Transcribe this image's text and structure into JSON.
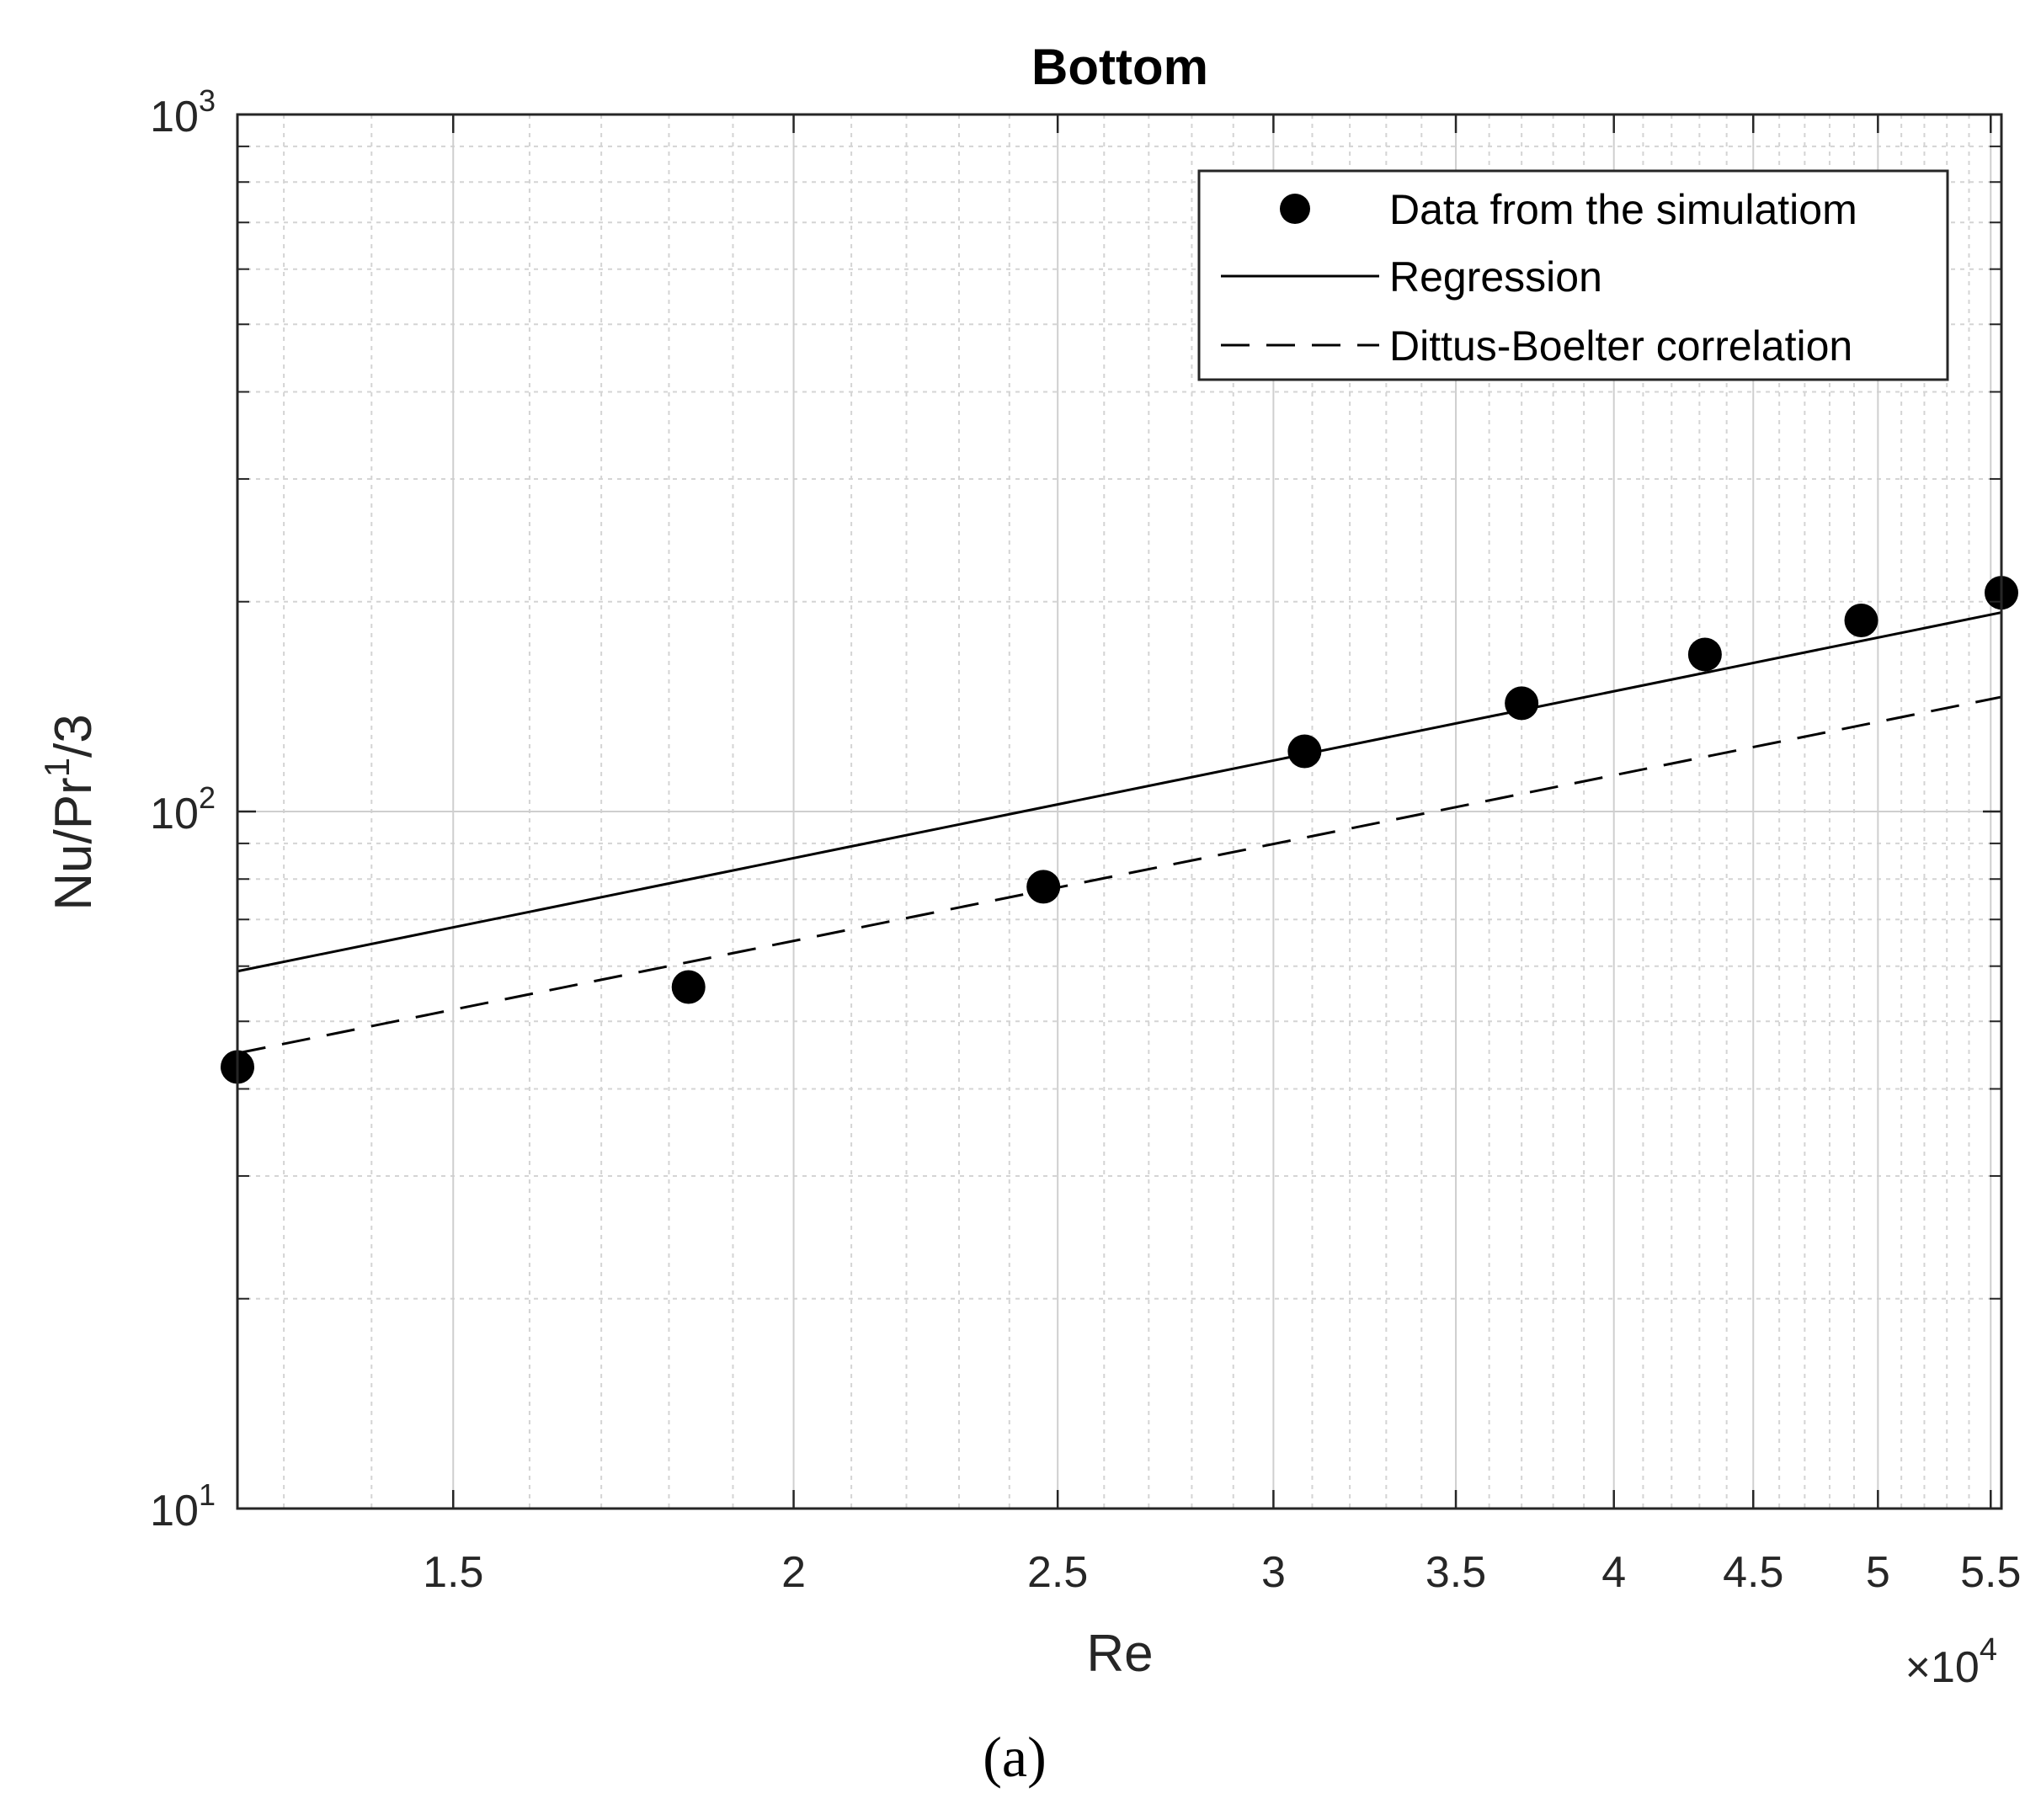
{
  "chart_data": {
    "type": "scatter",
    "title": "Bottom",
    "xlabel": "Re",
    "ylabel_base": "Nu/Pr",
    "ylabel_sup": "1",
    "ylabel_tail": "/3",
    "x_exponent_prefix": "×10",
    "x_exponent_power": "4",
    "x_scale": "log",
    "y_scale": "log",
    "xlim": [
      1.25,
      5.55
    ],
    "ylim": [
      10,
      1000
    ],
    "x_ticks": [
      {
        "value": 1.5,
        "label": "1.5"
      },
      {
        "value": 2,
        "label": "2"
      },
      {
        "value": 2.5,
        "label": "2.5"
      },
      {
        "value": 3,
        "label": "3"
      },
      {
        "value": 3.5,
        "label": "3.5"
      },
      {
        "value": 4,
        "label": "4"
      },
      {
        "value": 4.5,
        "label": "4.5"
      },
      {
        "value": 5,
        "label": "5"
      },
      {
        "value": 5.5,
        "label": "5.5"
      }
    ],
    "y_ticks": [
      {
        "value": 10,
        "base": "10",
        "exp": "1"
      },
      {
        "value": 100,
        "base": "10",
        "exp": "2"
      },
      {
        "value": 1000,
        "base": "10",
        "exp": "3"
      }
    ],
    "grid": true,
    "legend_position": "top-right",
    "series": [
      {
        "name": "Data from the simulatiom",
        "kind": "markers",
        "x": [
          1.25,
          1.83,
          2.47,
          3.08,
          3.7,
          4.32,
          4.93,
          5.55
        ],
        "y": [
          43,
          56,
          78,
          122,
          143,
          168,
          188,
          206
        ]
      },
      {
        "name": "Regression",
        "kind": "solid-line",
        "x": [
          1.25,
          5.55
        ],
        "y": [
          59,
          193
        ]
      },
      {
        "name": "Dittus-Boelter correlation",
        "kind": "dashed-line",
        "x": [
          1.25,
          5.55
        ],
        "y": [
          45,
          146
        ]
      }
    ]
  },
  "caption": "(a)"
}
